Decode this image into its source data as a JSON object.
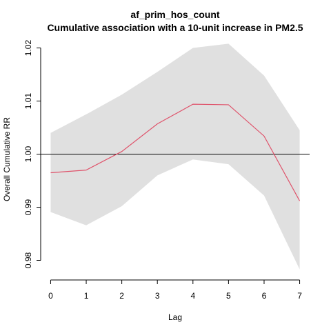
{
  "chart_data": {
    "type": "line",
    "title": "af_prim_hos_count",
    "subtitle": "Cumulative association with a 10-unit increase in PM2.5",
    "xlabel": "Lag",
    "ylabel": "Overall Cumulative RR",
    "xlim": [
      -0.28,
      7.28
    ],
    "ylim": [
      0.9763,
      1.0215
    ],
    "x_ticks": [
      0,
      1,
      2,
      3,
      4,
      5,
      6,
      7
    ],
    "y_ticks": [
      0.98,
      0.99,
      1.0,
      1.01,
      1.02
    ],
    "x_tick_labels": [
      "0",
      "1",
      "2",
      "3",
      "4",
      "5",
      "6",
      "7"
    ],
    "y_tick_labels": [
      "0.98",
      "0.99",
      "1.00",
      "1.01",
      "1.02"
    ],
    "reference_line": 1.0,
    "x": [
      0,
      1,
      2,
      3,
      4,
      5,
      6,
      7
    ],
    "series": [
      {
        "values": [
          0.9965,
          0.997,
          1.0005,
          1.0057,
          1.0094,
          1.0093,
          1.0034,
          0.9912
        ]
      }
    ],
    "ci_lower": [
      0.9891,
      0.9866,
      0.9902,
      0.996,
      0.999,
      0.9981,
      0.9922,
      0.9783
    ],
    "ci_upper": [
      1.004,
      1.0075,
      1.0112,
      1.0155,
      1.02,
      1.0208,
      1.0148,
      1.0045
    ],
    "colors": {
      "line": "#df536b",
      "band": "#e0e0e0",
      "axis": "#000000",
      "reference": "#000000"
    }
  }
}
